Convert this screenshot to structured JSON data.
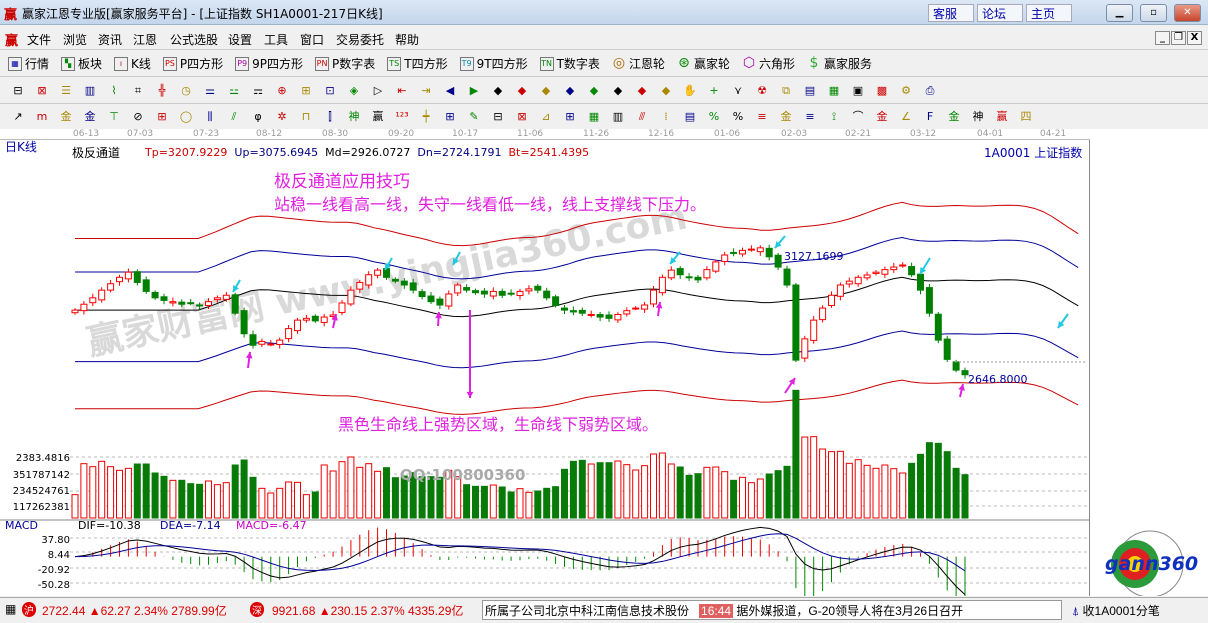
{
  "window": {
    "title": "赢家江恩专业版[赢家服务平台] - [上证指数  SH1A0001-217日K线]",
    "logo": "赢",
    "buttons": [
      "客服",
      "论坛",
      "主页"
    ],
    "controls": [
      "minimize",
      "maximize",
      "close"
    ]
  },
  "menu": {
    "logo": "赢",
    "items": [
      "文件",
      "浏览",
      "资讯",
      "江恩",
      "公式选股",
      "设置",
      "工具",
      "窗口",
      "交易委托",
      "帮助"
    ]
  },
  "toolbar1": [
    {
      "label": "行情",
      "icon": "grid-icon",
      "glyph": "▦"
    },
    {
      "label": "板块",
      "icon": "blocks-icon",
      "glyph": "▚"
    },
    {
      "label": "K线",
      "icon": "candlestick-icon",
      "glyph": "ı"
    },
    {
      "label": "P四方形",
      "icon": "ps-icon",
      "glyph": "PS"
    },
    {
      "label": "9P四方形",
      "icon": "p9-icon",
      "glyph": "P9"
    },
    {
      "label": "P数字表",
      "icon": "pn-icon",
      "glyph": "PN"
    },
    {
      "label": "T四方形",
      "icon": "ts-icon",
      "glyph": "TS"
    },
    {
      "label": "9T四方形",
      "icon": "t9-icon",
      "glyph": "T9"
    },
    {
      "label": "T数字表",
      "icon": "tn-icon",
      "glyph": "TN"
    },
    {
      "label": "江恩轮",
      "icon": "gann-wheel-icon",
      "glyph": "◎"
    },
    {
      "label": "赢家轮",
      "icon": "big-wheel-icon",
      "glyph": "⊛"
    },
    {
      "label": "六角形",
      "icon": "hexagon-icon",
      "glyph": "⬡"
    },
    {
      "label": "赢家服务",
      "icon": "dollar-icon",
      "glyph": "$"
    }
  ],
  "toolbar2": [
    "⊟",
    "⊠",
    "☰",
    "▥",
    "⌇",
    "⌗",
    "╬",
    "◷",
    "⚌",
    "⚍",
    "⚎",
    "⊕",
    "⊞",
    "⊡",
    "◈",
    "▷",
    "⇤",
    "⇥",
    "◀",
    "▶",
    "◆",
    "◆",
    "◆",
    "◆",
    "◆",
    "◆",
    "◆",
    "◆",
    "✋",
    "+",
    "⋎",
    "☢",
    "⧉",
    "▤",
    "▦",
    "▣",
    "▩",
    "⚙",
    "⎙"
  ],
  "toolbar3": [
    "↗",
    "m",
    "金",
    "金",
    "⊤",
    "⊘",
    "⊞",
    "◯",
    "⫼",
    "⫽",
    "φ",
    "✲",
    "⊓",
    "⫿",
    "神",
    "赢",
    "¹²³",
    "┿",
    "⊞",
    "✎",
    "⊟",
    "⊠",
    "⊿",
    "⊞",
    "▦",
    "▥",
    "⫻",
    "⁞",
    "▤",
    "%",
    "%",
    "≡",
    "金",
    "≡",
    "⟟",
    "⌒",
    "金",
    "∠",
    "F",
    "金",
    "神",
    "赢",
    "四"
  ],
  "chart": {
    "period": "日K线",
    "indicator": "极反通道",
    "values": [
      {
        "label": "Tp=3207.9229",
        "color": "#cc0000"
      },
      {
        "label": "Up=3075.6945",
        "color": "#000080"
      },
      {
        "label": "Md=2926.0727",
        "color": "#000000"
      },
      {
        "label": "Dn=2724.1791",
        "color": "#000080"
      },
      {
        "label": "Bt=2541.4395",
        "color": "#cc0000"
      }
    ],
    "symbol": "1A0001  上证指数",
    "dates": [
      "06-13",
      "07-03",
      "07-23",
      "08-12",
      "08-30",
      "09-20",
      "10-17",
      "11-06",
      "11-26",
      "12-16",
      "01-06",
      "02-03",
      "02-21",
      "03-12",
      "04-01",
      "04-21"
    ],
    "annotation_title": "极反通道应用技巧",
    "annotation_line": "站稳一线看高一线，失守一线看低一线，线上支撑线下压力。",
    "annotation_bottom": "黑色生命线上强势区域，生命线下弱势区域。",
    "high_label": "3127.1699",
    "low_label": "2646.8000",
    "watermark": "赢家财富网 www.yingjia360.com",
    "qq": "QQ:100800360",
    "price_axis_label": "2383.4816",
    "volume_axis": [
      "351787142",
      "234524761",
      "117262381"
    ],
    "macd": {
      "name": "MACD",
      "dif": "DIF=-10.38",
      "dea": "DEA=-7.14",
      "macd": "MACD=-6.47",
      "axis": [
        "37.80",
        "8.44",
        "-20.92",
        "-50.28"
      ]
    },
    "colors": {
      "up": "#ff0000",
      "down": "#008000",
      "md": "#000000",
      "band_inner": "#000099",
      "band_outer": "#cc0000",
      "annot": "#e020e0",
      "arrow_cyan": "#20c8e0"
    }
  },
  "chart_data": {
    "type": "candlestick",
    "closes": [
      2912,
      2935,
      2960,
      2990,
      3015,
      3040,
      3060,
      3020,
      2985,
      2960,
      2950,
      2945,
      2935,
      2940,
      2930,
      2945,
      2960,
      2970,
      2900,
      2820,
      2775,
      2790,
      2780,
      2795,
      2840,
      2873,
      2880,
      2870,
      2885,
      2893,
      2940,
      2990,
      3020,
      3050,
      3068,
      3040,
      3025,
      3010,
      2990,
      2965,
      2945,
      2932,
      2975,
      3010,
      2990,
      2980,
      2975,
      2985,
      2970,
      2975,
      2985,
      2995,
      2990,
      2960,
      2930,
      2912,
      2905,
      2900,
      2895,
      2885,
      2880,
      2895,
      2910,
      2920,
      2932,
      2990,
      3040,
      3068,
      3050,
      3040,
      3030,
      3070,
      3100,
      3127,
      3135,
      3145,
      3150,
      3155,
      3120,
      3080,
      3010,
      2717,
      2800,
      2873,
      2920,
      2970,
      3010,
      3025,
      3040,
      3049,
      3060,
      3070,
      3080,
      3088,
      3050,
      2990,
      2900,
      2795,
      2720,
      2678,
      2660
    ]
  },
  "status": {
    "sh_badge": "沪",
    "sh": "2722.44 ▲62.27 2.34% 2789.99亿",
    "sz_badge": "深",
    "sz": "9921.68 ▲230.15 2.37% 4335.29亿",
    "news1": "所属子公司北京中科江南信息技术股份",
    "time": "16:44",
    "news2": "据外媒报道，G-20领导人将在3月26日召开",
    "right": "收1A0001分笔"
  },
  "logo_text": "gann360"
}
